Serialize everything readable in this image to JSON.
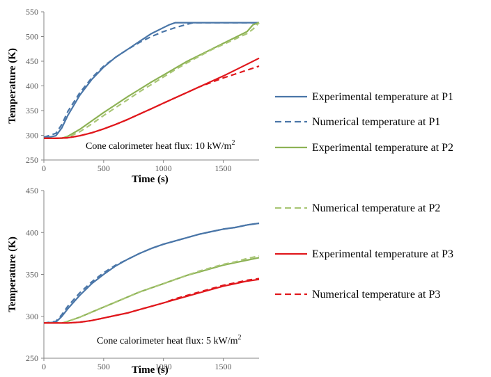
{
  "chart_data": [
    {
      "type": "line",
      "xlabel": "Time (s)",
      "ylabel": "Temperature (K)",
      "xlim": [
        0,
        1800
      ],
      "ylim": [
        250,
        550
      ],
      "xticks": [
        0,
        500,
        1000,
        1500
      ],
      "yticks": [
        250,
        300,
        350,
        400,
        450,
        500,
        550
      ],
      "grid": false,
      "annotation": {
        "text": "Cone calorimeter heat flux: 10 kW/m",
        "superscript": "2"
      },
      "series": [
        {
          "id": "exp_p1",
          "color": "#4a76a8",
          "dash": "solid",
          "x": [
            0,
            100,
            150,
            200,
            300,
            400,
            500,
            600,
            700,
            800,
            900,
            950,
            1000,
            1050,
            1100,
            1200,
            1300,
            1400,
            1500,
            1600,
            1700,
            1800
          ],
          "y": [
            294,
            299,
            315,
            340,
            381,
            413,
            438,
            458,
            474,
            490,
            506,
            512,
            518,
            524,
            528,
            528,
            528,
            528,
            528,
            528,
            528,
            528
          ]
        },
        {
          "id": "num_p1",
          "color": "#4a76a8",
          "dash": "dashed",
          "x": [
            0,
            100,
            150,
            200,
            300,
            400,
            500,
            600,
            700,
            800,
            900,
            1000,
            1100,
            1200,
            1250,
            1300,
            1400,
            1500,
            1600,
            1700,
            1800
          ],
          "y": [
            296,
            304,
            322,
            348,
            386,
            416,
            440,
            458,
            474,
            488,
            500,
            510,
            518,
            525,
            528,
            528,
            528,
            528,
            528,
            528,
            528
          ]
        },
        {
          "id": "exp_p2",
          "color": "#8db255",
          "dash": "solid",
          "x": [
            0,
            150,
            200,
            300,
            400,
            500,
            600,
            700,
            800,
            900,
            1000,
            1100,
            1200,
            1300,
            1400,
            1500,
            1600,
            1700,
            1750,
            1800
          ],
          "y": [
            294,
            294,
            298,
            312,
            329,
            346,
            362,
            378,
            393,
            408,
            422,
            436,
            450,
            462,
            474,
            486,
            498,
            510,
            524,
            528
          ]
        },
        {
          "id": "num_p2",
          "color": "#a9c676",
          "dash": "dashed",
          "x": [
            0,
            150,
            200,
            300,
            400,
            500,
            600,
            700,
            800,
            900,
            1000,
            1100,
            1200,
            1300,
            1400,
            1500,
            1600,
            1700,
            1750,
            1800
          ],
          "y": [
            294,
            294,
            296,
            307,
            323,
            340,
            356,
            372,
            388,
            403,
            418,
            433,
            447,
            460,
            473,
            484,
            495,
            506,
            515,
            528
          ]
        },
        {
          "id": "exp_p3",
          "color": "#e0171c",
          "dash": "solid",
          "x": [
            0,
            100,
            200,
            300,
            400,
            500,
            600,
            700,
            800,
            900,
            1000,
            1100,
            1200,
            1300,
            1400,
            1500,
            1600,
            1700,
            1800
          ],
          "y": [
            294,
            294,
            295,
            299,
            305,
            313,
            322,
            332,
            343,
            354,
            365,
            376,
            387,
            398,
            409,
            420,
            432,
            444,
            456
          ]
        },
        {
          "id": "num_p3",
          "color": "#e0171c",
          "dash": "dashed",
          "x": [
            0,
            100,
            200,
            300,
            400,
            500,
            600,
            700,
            800,
            900,
            1000,
            1100,
            1200,
            1300,
            1400,
            1500,
            1600,
            1700,
            1800
          ],
          "y": [
            294,
            294,
            295,
            299,
            305,
            313,
            322,
            332,
            343,
            354,
            365,
            376,
            387,
            398,
            407,
            416,
            424,
            432,
            440
          ]
        }
      ]
    },
    {
      "type": "line",
      "xlabel": "Time (s)",
      "ylabel": "Temperature (K)",
      "xlim": [
        0,
        1800
      ],
      "ylim": [
        250,
        450
      ],
      "xticks": [
        0,
        500,
        1000,
        1500
      ],
      "yticks": [
        250,
        300,
        350,
        400,
        450
      ],
      "grid": false,
      "annotation": {
        "text": "Cone calorimeter heat flux: 5 kW/m",
        "superscript": "2"
      },
      "series": [
        {
          "id": "exp_p1",
          "color": "#4a76a8",
          "dash": "solid",
          "x": [
            0,
            100,
            150,
            200,
            300,
            400,
            500,
            600,
            700,
            800,
            900,
            1000,
            1100,
            1200,
            1300,
            1400,
            1500,
            1600,
            1700,
            1800
          ],
          "y": [
            292,
            293,
            300,
            309,
            325,
            339,
            350,
            360,
            368,
            375,
            381,
            386,
            390,
            394,
            398,
            401,
            404,
            406,
            409,
            411
          ]
        },
        {
          "id": "num_p1",
          "color": "#4a76a8",
          "dash": "dashed",
          "x": [
            0,
            100,
            150,
            200,
            300,
            400,
            500,
            600,
            700,
            800,
            900,
            1000,
            1100,
            1200,
            1300,
            1400,
            1500,
            1600,
            1700,
            1800
          ],
          "y": [
            292,
            294,
            302,
            312,
            328,
            341,
            352,
            361,
            368,
            375,
            381,
            386,
            390,
            394,
            398,
            401,
            404,
            406,
            409,
            411
          ]
        },
        {
          "id": "exp_p2",
          "color": "#8db255",
          "dash": "solid",
          "x": [
            0,
            150,
            200,
            300,
            400,
            500,
            600,
            700,
            800,
            900,
            1000,
            1100,
            1200,
            1300,
            1400,
            1500,
            1600,
            1700,
            1800
          ],
          "y": [
            292,
            292,
            294,
            299,
            305,
            311,
            317,
            323,
            329,
            334,
            339,
            344,
            349,
            353,
            357,
            361,
            364,
            367,
            370
          ]
        },
        {
          "id": "num_p2",
          "color": "#a9c676",
          "dash": "dashed",
          "x": [
            0,
            150,
            200,
            300,
            400,
            500,
            600,
            700,
            800,
            900,
            1000,
            1100,
            1200,
            1300,
            1400,
            1500,
            1600,
            1700,
            1800
          ],
          "y": [
            292,
            292,
            294,
            299,
            305,
            311,
            317,
            323,
            329,
            334,
            339,
            344,
            349,
            354,
            358,
            362,
            365,
            369,
            372
          ]
        },
        {
          "id": "exp_p3",
          "color": "#e0171c",
          "dash": "solid",
          "x": [
            0,
            200,
            300,
            400,
            500,
            600,
            700,
            800,
            900,
            1000,
            1100,
            1200,
            1300,
            1400,
            1500,
            1600,
            1700,
            1800
          ],
          "y": [
            292,
            292,
            293,
            295,
            298,
            301,
            304,
            308,
            312,
            316,
            320,
            324,
            328,
            332,
            336,
            339,
            342,
            344
          ]
        },
        {
          "id": "num_p3",
          "color": "#e0171c",
          "dash": "dashed",
          "x": [
            0,
            200,
            300,
            400,
            500,
            600,
            700,
            800,
            900,
            1000,
            1100,
            1200,
            1300,
            1400,
            1500,
            1600,
            1700,
            1800
          ],
          "y": [
            292,
            292,
            293,
            295,
            298,
            301,
            304,
            308,
            312,
            316,
            321,
            325,
            329,
            333,
            337,
            340,
            343,
            345
          ]
        }
      ]
    }
  ],
  "legend": {
    "placement": "right",
    "entries": [
      {
        "label": "Experimental temperature at P1",
        "color": "#4a76a8",
        "dash": "solid"
      },
      {
        "label": "Numerical temperature at P1",
        "color": "#4a76a8",
        "dash": "dashed"
      },
      {
        "label": "Experimental temperature at P2",
        "color": "#8db255",
        "dash": "solid"
      },
      {
        "label": "Numerical temperature at P2",
        "color": "#a9c676",
        "dash": "dashed"
      },
      {
        "label": "Experimental temperature at P3",
        "color": "#e0171c",
        "dash": "solid"
      },
      {
        "label": "Numerical temperature at P3",
        "color": "#e0171c",
        "dash": "dashed"
      }
    ]
  }
}
